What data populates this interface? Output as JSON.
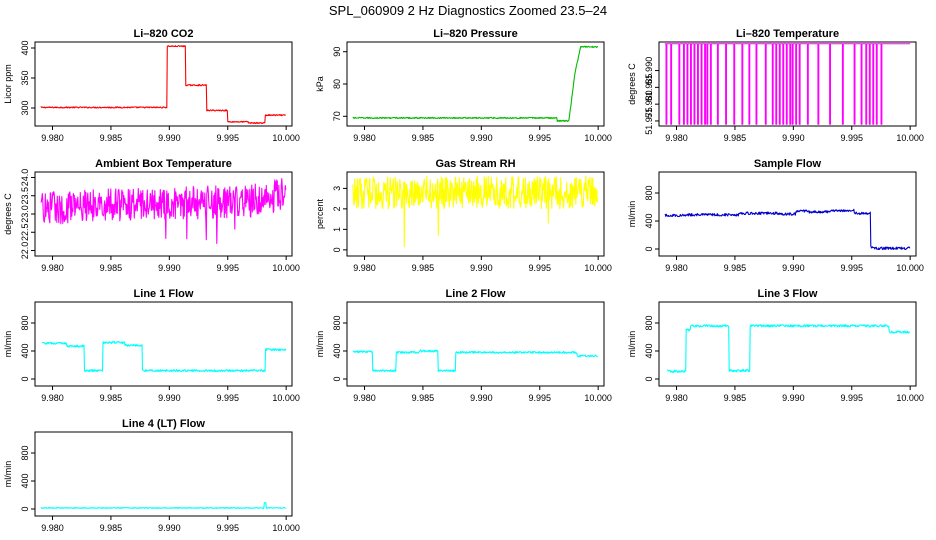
{
  "page_title": "SPL_060909  2 Hz Diagnostics Zoomed 23.5–24",
  "chart_data": [
    {
      "type": "line",
      "title": "Li–820 CO2",
      "ylabel": "Licor ppm",
      "color": "#ff0000",
      "xlim": [
        9.9785,
        10.0005
      ],
      "ylim": [
        270,
        410
      ],
      "yticks": [
        300,
        350,
        400
      ],
      "ytick_labels": [
        "300",
        "350",
        "400"
      ],
      "xticks": [
        9.98,
        9.985,
        9.99,
        9.995,
        10.0
      ],
      "xtick_labels": [
        "9.980",
        "9.985",
        "9.990",
        "9.995",
        "10.000"
      ],
      "noise": 1,
      "x": [
        9.979,
        9.9898,
        9.9898,
        9.9914,
        9.9914,
        9.9932,
        9.9932,
        9.995,
        9.995,
        9.9968,
        9.9968,
        9.9982,
        9.9982,
        10.0
      ],
      "y": [
        301,
        301,
        403,
        403,
        338,
        338,
        296,
        296,
        277,
        277,
        275,
        275,
        288,
        288
      ]
    },
    {
      "type": "line",
      "title": "Li–820 Pressure",
      "ylabel": "kPa",
      "color": "#00bb00",
      "xlim": [
        9.9785,
        10.0005
      ],
      "ylim": [
        67,
        93
      ],
      "yticks": [
        70,
        80,
        90
      ],
      "ytick_labels": [
        "70",
        "80",
        "90"
      ],
      "xticks": [
        9.98,
        9.985,
        9.99,
        9.995,
        10.0
      ],
      "xtick_labels": [
        "9.980",
        "9.985",
        "9.990",
        "9.995",
        "10.000"
      ],
      "noise": 0.2,
      "x": [
        9.979,
        9.9965,
        9.9965,
        9.9975,
        9.998,
        9.9985,
        10.0
      ],
      "y": [
        69.5,
        69.5,
        68.6,
        68.6,
        83,
        91.5,
        91.5
      ]
    },
    {
      "type": "line",
      "title": "Li–820 Temperature",
      "ylabel": "degrees C",
      "color": "#ff00ff",
      "xlim": [
        9.9785,
        10.0005
      ],
      "ylim": [
        51.9735,
        51.9985
      ],
      "yticks": [
        51.975,
        51.98,
        51.985,
        51.99
      ],
      "ytick_labels": [
        "51.975",
        "51.980",
        "51.985",
        "51.990"
      ],
      "xticks": [
        9.98,
        9.985,
        9.99,
        9.995,
        10.0
      ],
      "xtick_labels": [
        "9.980",
        "9.985",
        "9.990",
        "9.995",
        "10.000"
      ],
      "base": 51.998,
      "low": 51.974,
      "spikes": [
        9.9791,
        9.9795,
        9.9802,
        9.9806,
        9.9809,
        9.9812,
        9.9815,
        9.9818,
        9.9821,
        9.9824,
        9.9826,
        9.9829,
        9.9835,
        9.9842,
        9.9849,
        9.9856,
        9.9862,
        9.9868,
        9.9876,
        9.9882,
        9.9885,
        9.9888,
        9.9891,
        9.9894,
        9.9897,
        9.9899,
        9.9902,
        9.9905,
        9.9912,
        9.9921,
        9.9931,
        9.9942,
        9.9952,
        9.9958,
        9.9962,
        9.9965,
        9.9968,
        9.9971,
        9.9975
      ]
    },
    {
      "type": "line",
      "title": "Ambient Box Temperature",
      "ylabel": "degrees C",
      "color": "#ff00ff",
      "xlim": [
        9.9785,
        10.0005
      ],
      "ylim": [
        21.85,
        24.15
      ],
      "yticks": [
        22.0,
        22.5,
        23.0,
        23.5,
        24.0
      ],
      "ytick_labels": [
        "22.0",
        "22.5",
        "23.0",
        "23.5",
        "24.0"
      ],
      "xticks": [
        9.98,
        9.985,
        9.99,
        9.995,
        10.0
      ],
      "xtick_labels": [
        "9.980",
        "9.985",
        "9.990",
        "9.995",
        "10.000"
      ],
      "noise": 0.45,
      "x": [
        9.979,
        9.985,
        9.997,
        10.0
      ],
      "y": [
        23.15,
        23.25,
        23.35,
        23.55
      ]
    },
    {
      "type": "line",
      "title": "Gas Stream RH",
      "ylabel": "percent",
      "color": "#ffff00",
      "xlim": [
        9.9785,
        10.0005
      ],
      "ylim": [
        -0.3,
        3.8
      ],
      "yticks": [
        0,
        1,
        2,
        3
      ],
      "ytick_labels": [
        "0",
        "1",
        "2",
        "3"
      ],
      "xticks": [
        9.98,
        9.985,
        9.99,
        9.995,
        10.0
      ],
      "xtick_labels": [
        "9.980",
        "9.985",
        "9.990",
        "9.995",
        "10.000"
      ],
      "noise": 0.8,
      "x": [
        9.979,
        10.0
      ],
      "y": [
        2.8,
        2.8
      ]
    },
    {
      "type": "line",
      "title": "Sample Flow",
      "ylabel": "ml/min",
      "color": "#0000cc",
      "xlim": [
        9.9785,
        10.0005
      ],
      "ylim": [
        -100,
        1100
      ],
      "yticks": [
        0,
        400,
        800
      ],
      "ytick_labels": [
        "0",
        "400",
        "800"
      ],
      "xticks": [
        9.98,
        9.985,
        9.99,
        9.995,
        10.0
      ],
      "xtick_labels": [
        "9.980",
        "9.985",
        "9.990",
        "9.995",
        "10.000"
      ],
      "noise": 18,
      "x": [
        9.979,
        9.981,
        9.981,
        9.9853,
        9.9853,
        9.9887,
        9.9887,
        9.9902,
        9.9902,
        9.9912,
        9.9912,
        9.9932,
        9.9932,
        9.9952,
        9.9952,
        9.9966,
        9.9966,
        9.9968,
        10.0
      ],
      "y": [
        480,
        480,
        490,
        490,
        510,
        510,
        500,
        500,
        540,
        540,
        530,
        530,
        550,
        550,
        510,
        510,
        40,
        10,
        10
      ]
    },
    {
      "type": "line",
      "title": "Line 1 Flow",
      "ylabel": "ml/min",
      "color": "#00ffff",
      "xlim": [
        9.9785,
        10.0005
      ],
      "ylim": [
        -100,
        1100
      ],
      "yticks": [
        0,
        400,
        800
      ],
      "ytick_labels": [
        "0",
        "400",
        "800"
      ],
      "xticks": [
        9.98,
        9.985,
        9.99,
        9.995,
        10.0
      ],
      "xtick_labels": [
        "9.980",
        "9.985",
        "9.990",
        "9.995",
        "10.000"
      ],
      "noise": 14,
      "x": [
        9.9791,
        9.9791,
        9.9812,
        9.9812,
        9.9827,
        9.9827,
        9.9843,
        9.9843,
        9.9862,
        9.9862,
        9.9877,
        9.9877,
        9.9982,
        9.9982,
        10.0
      ],
      "y": [
        150,
        510,
        510,
        470,
        470,
        120,
        120,
        520,
        520,
        480,
        480,
        120,
        120,
        420,
        420
      ]
    },
    {
      "type": "line",
      "title": "Line 2 Flow",
      "ylabel": "ml/min",
      "color": "#00ffff",
      "xlim": [
        9.9785,
        10.0005
      ],
      "ylim": [
        -100,
        1100
      ],
      "yticks": [
        0,
        400,
        800
      ],
      "ytick_labels": [
        "0",
        "400",
        "800"
      ],
      "xticks": [
        9.98,
        9.985,
        9.99,
        9.995,
        10.0
      ],
      "xtick_labels": [
        "9.980",
        "9.985",
        "9.990",
        "9.995",
        "10.000"
      ],
      "noise": 14,
      "x": [
        9.979,
        9.9807,
        9.9807,
        9.9827,
        9.9827,
        9.9847,
        9.9847,
        9.9863,
        9.9863,
        9.9878,
        9.9878,
        9.9982,
        9.9982,
        10.0
      ],
      "y": [
        390,
        390,
        120,
        120,
        380,
        380,
        400,
        400,
        120,
        120,
        380,
        380,
        330,
        330
      ]
    },
    {
      "type": "line",
      "title": "Line 3 Flow",
      "ylabel": "ml/min",
      "color": "#00ffff",
      "xlim": [
        9.9785,
        10.0005
      ],
      "ylim": [
        -100,
        1100
      ],
      "yticks": [
        0,
        400,
        800
      ],
      "ytick_labels": [
        "0",
        "400",
        "800"
      ],
      "xticks": [
        9.98,
        9.985,
        9.99,
        9.995,
        10.0
      ],
      "xtick_labels": [
        "9.980",
        "9.985",
        "9.990",
        "9.995",
        "10.000"
      ],
      "noise": 16,
      "x": [
        9.9792,
        9.9792,
        9.9794,
        9.9794,
        9.9808,
        9.9808,
        9.9812,
        9.9812,
        9.9845,
        9.9845,
        9.9863,
        9.9863,
        9.9982,
        9.9982,
        10.0
      ],
      "y": [
        780,
        120,
        120,
        110,
        110,
        700,
        700,
        760,
        760,
        120,
        120,
        760,
        760,
        670,
        670
      ]
    },
    {
      "type": "line",
      "title": "Line 4 (LT) Flow",
      "ylabel": "ml/min",
      "color": "#00ffff",
      "xlim": [
        9.9785,
        10.0005
      ],
      "ylim": [
        -100,
        1100
      ],
      "yticks": [
        0,
        400,
        800
      ],
      "ytick_labels": [
        "0",
        "400",
        "800"
      ],
      "xticks": [
        9.98,
        9.985,
        9.99,
        9.995,
        10.0
      ],
      "xtick_labels": [
        "9.980",
        "9.985",
        "9.990",
        "9.995",
        "10.000"
      ],
      "noise": 6,
      "x": [
        9.979,
        9.9981,
        9.9981,
        9.9983,
        9.9983,
        10.0
      ],
      "y": [
        15,
        15,
        90,
        90,
        15,
        15
      ]
    }
  ]
}
